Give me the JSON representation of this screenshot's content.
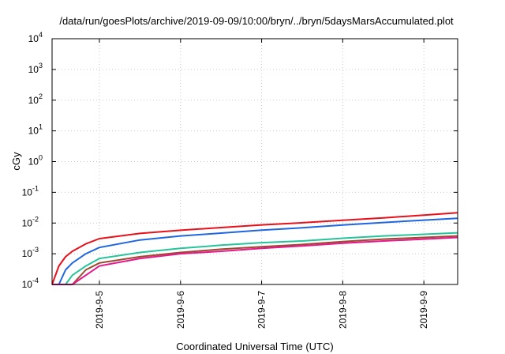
{
  "chart_data": {
    "type": "line",
    "title": "/data/run/goesPlots/archive/2019-09-09/10:00/bryn/../bryn/5daysMarsAccumulated.plot",
    "xlabel": "Coordinated Universal Time (UTC)",
    "ylabel": "cGy",
    "yscale": "log",
    "ylim_exp": [
      -4,
      4
    ],
    "y_ticks": [
      {
        "base": "10",
        "exp": "-4"
      },
      {
        "base": "10",
        "exp": "-3"
      },
      {
        "base": "10",
        "exp": "-2"
      },
      {
        "base": "10",
        "exp": "-1"
      },
      {
        "base": "10",
        "exp": "0"
      },
      {
        "base": "10",
        "exp": "1"
      },
      {
        "base": "10",
        "exp": "2"
      },
      {
        "base": "10",
        "exp": "3"
      },
      {
        "base": "10",
        "exp": "4"
      }
    ],
    "xlim": [
      "2019-09-04T10:00",
      "2019-09-09T10:00"
    ],
    "x_ticks": [
      {
        "label": "2019-9-5",
        "value": "2019-09-05T00:00"
      },
      {
        "label": "2019-9-6",
        "value": "2019-09-06T00:00"
      },
      {
        "label": "2019-9-7",
        "value": "2019-09-07T00:00"
      },
      {
        "label": "2019-9-8",
        "value": "2019-09-08T00:00"
      },
      {
        "label": "2019-9-9",
        "value": "2019-09-09T00:00"
      }
    ],
    "grid": true,
    "x": [
      "2019-09-04T10:00",
      "2019-09-04T12:00",
      "2019-09-04T14:00",
      "2019-09-04T16:00",
      "2019-09-04T20:00",
      "2019-09-05T00:00",
      "2019-09-05T12:00",
      "2019-09-06T00:00",
      "2019-09-06T12:00",
      "2019-09-07T00:00",
      "2019-09-07T12:00",
      "2019-09-08T00:00",
      "2019-09-08T12:00",
      "2019-09-09T00:00",
      "2019-09-09T10:00"
    ],
    "series": [
      {
        "color": "#e8101a",
        "values": [
          0.0001,
          0.0004,
          0.0008,
          0.0012,
          0.0021,
          0.0031,
          0.0046,
          0.0058,
          0.0071,
          0.0087,
          0.0102,
          0.0123,
          0.0147,
          0.018,
          0.0215
        ]
      },
      {
        "color": "#1f66e0",
        "values": [
          0.0001,
          0.0001,
          0.0003,
          0.0005,
          0.001,
          0.0016,
          0.0028,
          0.0038,
          0.0047,
          0.0059,
          0.007,
          0.0086,
          0.0104,
          0.0124,
          0.0143
        ]
      },
      {
        "color": "#25c49a",
        "values": [
          0.0001,
          0.0001,
          0.0001,
          0.0002,
          0.0004,
          0.0007,
          0.0011,
          0.0015,
          0.0019,
          0.0023,
          0.0026,
          0.0032,
          0.0038,
          0.0043,
          0.0048
        ]
      },
      {
        "color": "#9a4a2e",
        "values": [
          0.0001,
          0.0001,
          0.0001,
          0.0001,
          0.0003,
          0.0005,
          0.0008,
          0.0011,
          0.0014,
          0.0017,
          0.002,
          0.0025,
          0.003,
          0.0034,
          0.0038
        ]
      },
      {
        "color": "#e6188c",
        "values": [
          0.0001,
          0.0001,
          0.0001,
          0.0001,
          0.0002,
          0.0004,
          0.0007,
          0.001,
          0.0012,
          0.0015,
          0.0018,
          0.0022,
          0.0026,
          0.003,
          0.0034
        ]
      }
    ]
  }
}
